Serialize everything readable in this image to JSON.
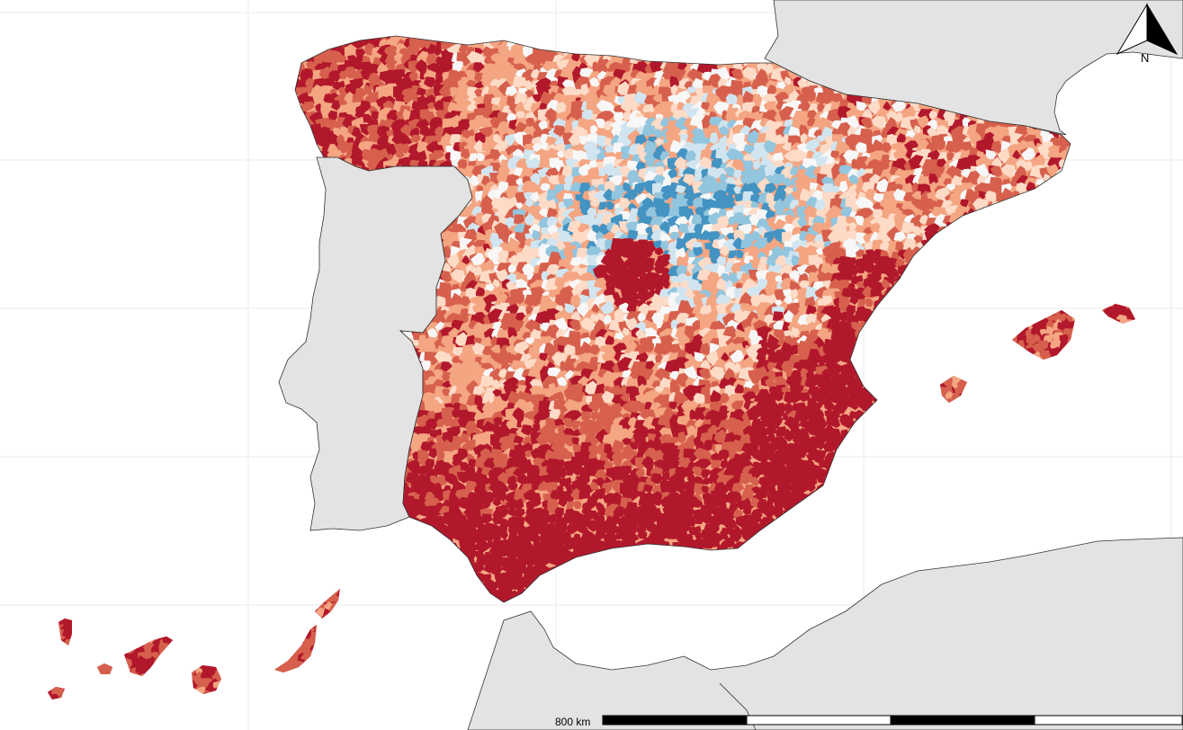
{
  "map": {
    "north_arrow": {
      "label": "N"
    },
    "scale_bar": {
      "label": "800 km",
      "segments": 4
    },
    "colors": {
      "background": "#ffffff",
      "land_context": "#e3e3e3",
      "graticule": "#ebebeb",
      "border": "#333333",
      "scale_dark": "#000000",
      "scale_light": "#ffffff",
      "palette_diverging": [
        "#b2182b",
        "#d6604d",
        "#f4a582",
        "#fddbc7",
        "#f7f7f7",
        "#d1e5f0",
        "#92c5de",
        "#4393c3",
        "#2166ac"
      ]
    },
    "regions": [
      {
        "name": "iberian-peninsula-spain",
        "dominant": "mixed"
      },
      {
        "name": "balearic-islands",
        "dominant": "high"
      },
      {
        "name": "canary-islands",
        "dominant": "high"
      }
    ]
  }
}
